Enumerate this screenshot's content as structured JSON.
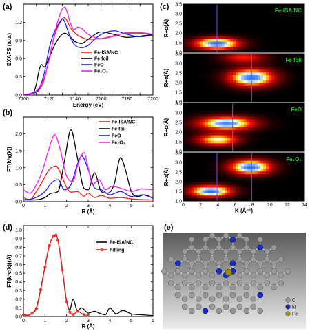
{
  "panels": {
    "a": {
      "letter": "(a)"
    },
    "b": {
      "letter": "(b)"
    },
    "c": {
      "letter": "(c)"
    },
    "d": {
      "letter": "(d)"
    },
    "e": {
      "letter": "(e)"
    }
  },
  "chart_data": [
    {
      "id": "a",
      "type": "line",
      "xlabel": "Energy (eV)",
      "ylabel": "EXAFS (a.u.)",
      "xlim": [
        7100,
        7200
      ],
      "ylim": [
        0.0,
        1.5
      ],
      "xticks": [
        7100,
        7110,
        7120,
        7130,
        7140,
        7150,
        7160,
        7170,
        7180,
        7190,
        7200
      ],
      "xtick_labels": [
        "7100",
        "",
        "7120",
        "",
        "7140",
        "",
        "7160",
        "",
        "7180",
        "",
        "7200"
      ],
      "yticks": [
        0.0,
        0.3,
        0.6,
        0.9,
        1.2
      ],
      "ytick_labels": [
        "0.0",
        "0.3",
        "0.6",
        "0.9",
        "1.2"
      ],
      "legend_position": "center-right",
      "series": [
        {
          "name": "Fe-ISA/NC",
          "color": "#ff1a1a",
          "x": [
            7100,
            7108,
            7112,
            7116,
            7120,
            7123,
            7126,
            7129,
            7131,
            7133,
            7136,
            7140,
            7145,
            7150,
            7160,
            7170,
            7180,
            7190,
            7200
          ],
          "y": [
            0.01,
            0.03,
            0.08,
            0.25,
            0.62,
            0.9,
            1.1,
            1.22,
            1.28,
            1.25,
            1.12,
            1.02,
            0.95,
            0.92,
            0.93,
            0.98,
            1.02,
            1.02,
            1.0
          ]
        },
        {
          "name": "Fe foil",
          "color": "#000000",
          "x": [
            7100,
            7108,
            7110,
            7112,
            7114,
            7116,
            7118,
            7120,
            7124,
            7128,
            7132,
            7136,
            7140,
            7145,
            7150,
            7160,
            7170,
            7180,
            7190,
            7200
          ],
          "y": [
            0.01,
            0.05,
            0.18,
            0.4,
            0.5,
            0.46,
            0.52,
            0.62,
            0.82,
            0.96,
            1.02,
            0.96,
            0.88,
            0.85,
            0.92,
            1.04,
            1.0,
            0.95,
            0.97,
            1.0
          ]
        },
        {
          "name": "FeO",
          "color": "#1a1aff",
          "x": [
            7100,
            7108,
            7112,
            7116,
            7120,
            7124,
            7128,
            7130,
            7132,
            7134,
            7137,
            7140,
            7145,
            7150,
            7155,
            7160,
            7170,
            7180,
            7190,
            7200
          ],
          "y": [
            0.01,
            0.03,
            0.1,
            0.35,
            0.78,
            1.05,
            1.2,
            1.26,
            1.2,
            1.08,
            0.92,
            0.82,
            0.78,
            0.82,
            0.92,
            1.0,
            1.06,
            1.0,
            0.96,
            0.99
          ]
        },
        {
          "name": "Fe₂O₃",
          "color": "#ff1aff",
          "x": [
            7100,
            7108,
            7112,
            7116,
            7120,
            7124,
            7127,
            7130,
            7132,
            7134,
            7136,
            7139,
            7142,
            7145,
            7150,
            7160,
            7170,
            7180,
            7190,
            7200
          ],
          "y": [
            0.01,
            0.04,
            0.12,
            0.28,
            0.6,
            1.0,
            1.25,
            1.42,
            1.45,
            1.35,
            1.2,
            1.08,
            1.12,
            1.1,
            1.0,
            0.93,
            0.97,
            1.03,
            1.03,
            1.0
          ]
        }
      ]
    },
    {
      "id": "b",
      "type": "line",
      "xlabel": "R (Å)",
      "ylabel": "FT(k³χ(k))",
      "xlim": [
        0,
        6
      ],
      "ylim": [
        0,
        2.5
      ],
      "xticks": [
        0,
        1,
        2,
        3,
        4,
        5,
        6
      ],
      "xtick_labels": [
        "0",
        "1",
        "2",
        "3",
        "4",
        "5",
        "6"
      ],
      "yticks": [
        0.0,
        0.5,
        1.0,
        1.5,
        2.0
      ],
      "ytick_labels": [
        "0.0",
        "0.5",
        "1.0",
        "1.5",
        "2.0"
      ],
      "legend_position": "top-right",
      "series": [
        {
          "name": "Fe-ISA/NC",
          "color": "#ff1a1a",
          "x": [
            0,
            0.3,
            0.6,
            0.9,
            1.2,
            1.5,
            1.8,
            2.0,
            2.2,
            2.5,
            2.8,
            3.0,
            3.3,
            3.6,
            4.0,
            4.5,
            5.0,
            5.5,
            6.0
          ],
          "y": [
            0.12,
            0.05,
            0.3,
            0.62,
            0.95,
            1.05,
            0.72,
            0.42,
            0.28,
            0.3,
            0.16,
            0.25,
            0.12,
            0.18,
            0.1,
            0.12,
            0.08,
            0.06,
            0.05
          ]
        },
        {
          "name": "Fe foil",
          "color": "#000000",
          "x": [
            0,
            0.5,
            1.0,
            1.3,
            1.6,
            1.9,
            2.2,
            2.5,
            2.8,
            3.0,
            3.3,
            3.6,
            3.9,
            4.2,
            4.5,
            4.7,
            5.0,
            5.3,
            5.6,
            6.0
          ],
          "y": [
            0.05,
            0.05,
            0.12,
            0.25,
            0.3,
            1.2,
            2.12,
            1.3,
            0.4,
            0.35,
            0.85,
            0.3,
            0.25,
            0.5,
            1.3,
            1.0,
            0.3,
            0.15,
            0.2,
            0.1
          ]
        },
        {
          "name": "FeO",
          "color": "#1a1aff",
          "x": [
            0,
            0.5,
            1.0,
            1.3,
            1.6,
            1.9,
            2.2,
            2.5,
            2.7,
            3.0,
            3.3,
            3.6,
            4.0,
            4.5,
            5.0,
            5.5,
            6.0
          ],
          "y": [
            0.05,
            0.1,
            0.3,
            0.55,
            0.65,
            0.35,
            0.5,
            1.1,
            1.35,
            0.95,
            0.4,
            0.35,
            0.2,
            0.3,
            0.15,
            0.2,
            0.1
          ]
        },
        {
          "name": "Fe₂O₃",
          "color": "#ff1aff",
          "x": [
            0,
            0.3,
            0.6,
            0.9,
            1.2,
            1.45,
            1.7,
            2.0,
            2.3,
            2.5,
            2.8,
            3.0,
            3.2,
            3.5,
            3.8,
            4.1,
            4.5,
            5.0,
            5.5,
            6.0
          ],
          "y": [
            0.35,
            0.25,
            0.5,
            0.95,
            1.6,
            1.98,
            1.55,
            0.75,
            0.6,
            1.05,
            1.45,
            1.0,
            0.5,
            0.65,
            0.35,
            0.45,
            0.4,
            0.3,
            0.38,
            0.35
          ]
        }
      ]
    },
    {
      "id": "c",
      "type": "heatmap",
      "xlabel": "K (Å⁻¹)",
      "ylabel": "R+α(Å)",
      "xlim": [
        0,
        14
      ],
      "ylim": [
        1.0,
        3.5
      ],
      "xticks": [
        0,
        2,
        4,
        6,
        8,
        10,
        12,
        14
      ],
      "xtick_labels": [
        "0",
        "2",
        "4",
        "6",
        "8",
        "10",
        "12",
        "14"
      ],
      "yticks": [
        1.0,
        1.5,
        2.0,
        2.5,
        3.0,
        3.5
      ],
      "ytick_labels": [
        "1.0",
        "1.5",
        "2.0",
        "2.5",
        "3.0",
        "3.5"
      ],
      "maps": [
        {
          "label": "Fe-ISA/NC",
          "markers_k": [
            3.9
          ],
          "blobs": [
            {
              "k": 3.9,
              "r": 1.45,
              "sk": 2.6,
              "sr": 0.3,
              "a": 1.0
            }
          ]
        },
        {
          "label": "Fe foil",
          "markers_k": [
            7.9
          ],
          "blobs": [
            {
              "k": 7.9,
              "r": 2.25,
              "sk": 2.6,
              "sr": 0.45,
              "a": 1.0
            },
            {
              "k": 7.0,
              "r": 3.3,
              "sk": 2.5,
              "sr": 0.3,
              "a": 0.45
            }
          ]
        },
        {
          "label": "FeO",
          "markers_k": [
            5.7
          ],
          "blobs": [
            {
              "k": 5.0,
              "r": 2.45,
              "sk": 3.2,
              "sr": 0.35,
              "a": 0.95
            },
            {
              "k": 4.0,
              "r": 1.6,
              "sk": 2.4,
              "sr": 0.3,
              "a": 0.75
            }
          ]
        },
        {
          "label": "Fe₂O₃",
          "markers_k": [
            3.9,
            7.9
          ],
          "blobs": [
            {
              "k": 3.2,
              "r": 1.5,
              "sk": 2.4,
              "sr": 0.3,
              "a": 1.0
            },
            {
              "k": 7.8,
              "r": 2.75,
              "sk": 2.4,
              "sr": 0.38,
              "a": 1.0
            }
          ]
        }
      ]
    },
    {
      "id": "d",
      "type": "line",
      "xlabel": "R (Å)",
      "ylabel": "FT(k³c(k))(Å)",
      "xlim": [
        0,
        6
      ],
      "ylim": [
        0,
        1.05
      ],
      "xticks": [
        0,
        1,
        2,
        3,
        4,
        5,
        6
      ],
      "xtick_labels": [
        "0",
        "1",
        "2",
        "3",
        "4",
        "5",
        "6"
      ],
      "yticks": [
        0.0,
        0.1,
        0.2,
        0.3,
        0.4,
        0.5,
        0.6,
        0.7,
        0.8,
        0.9,
        1.0
      ],
      "ytick_labels": [
        "0.0",
        "0.1",
        "0.2",
        "0.3",
        "0.4",
        "0.5",
        "0.6",
        "0.7",
        "0.8",
        "0.9",
        "1.0"
      ],
      "legend_position": "top-right",
      "series": [
        {
          "name": "Fe-ISA/NC",
          "color": "#000000",
          "x": [
            0,
            0.2,
            0.4,
            0.6,
            0.8,
            1.0,
            1.2,
            1.4,
            1.5,
            1.6,
            1.8,
            2.0,
            2.15,
            2.3,
            2.5,
            2.7,
            3.0,
            3.3,
            3.5,
            3.8,
            4.0,
            4.3,
            4.6,
            5.0,
            5.5,
            6.0
          ],
          "y": [
            0.03,
            0.01,
            0.04,
            0.1,
            0.32,
            0.58,
            0.82,
            0.93,
            0.94,
            0.88,
            0.55,
            0.18,
            0.08,
            0.2,
            0.07,
            0.1,
            0.04,
            0.06,
            0.04,
            0.02,
            0.1,
            0.03,
            0.07,
            0.03,
            0.02,
            0.01
          ]
        },
        {
          "name": "Fitting",
          "color": "#ff1a1a",
          "markers": true,
          "x": [
            0,
            0.2,
            0.4,
            0.6,
            0.8,
            1.0,
            1.2,
            1.4,
            1.5,
            1.6,
            1.8,
            2.0,
            2.15,
            2.3,
            2.5,
            2.8,
            3.0
          ],
          "y": [
            0.02,
            0.01,
            0.04,
            0.09,
            0.31,
            0.57,
            0.82,
            0.93,
            0.94,
            0.88,
            0.54,
            0.17,
            0.05,
            0.02,
            0.06,
            0.02,
            0.01
          ]
        }
      ]
    }
  ],
  "structure": {
    "legend": [
      {
        "label": "C",
        "color": "#9a9a9a"
      },
      {
        "label": "N",
        "color": "#1a2bd0"
      },
      {
        "label": "Fe",
        "color": "#a08a10"
      }
    ]
  }
}
